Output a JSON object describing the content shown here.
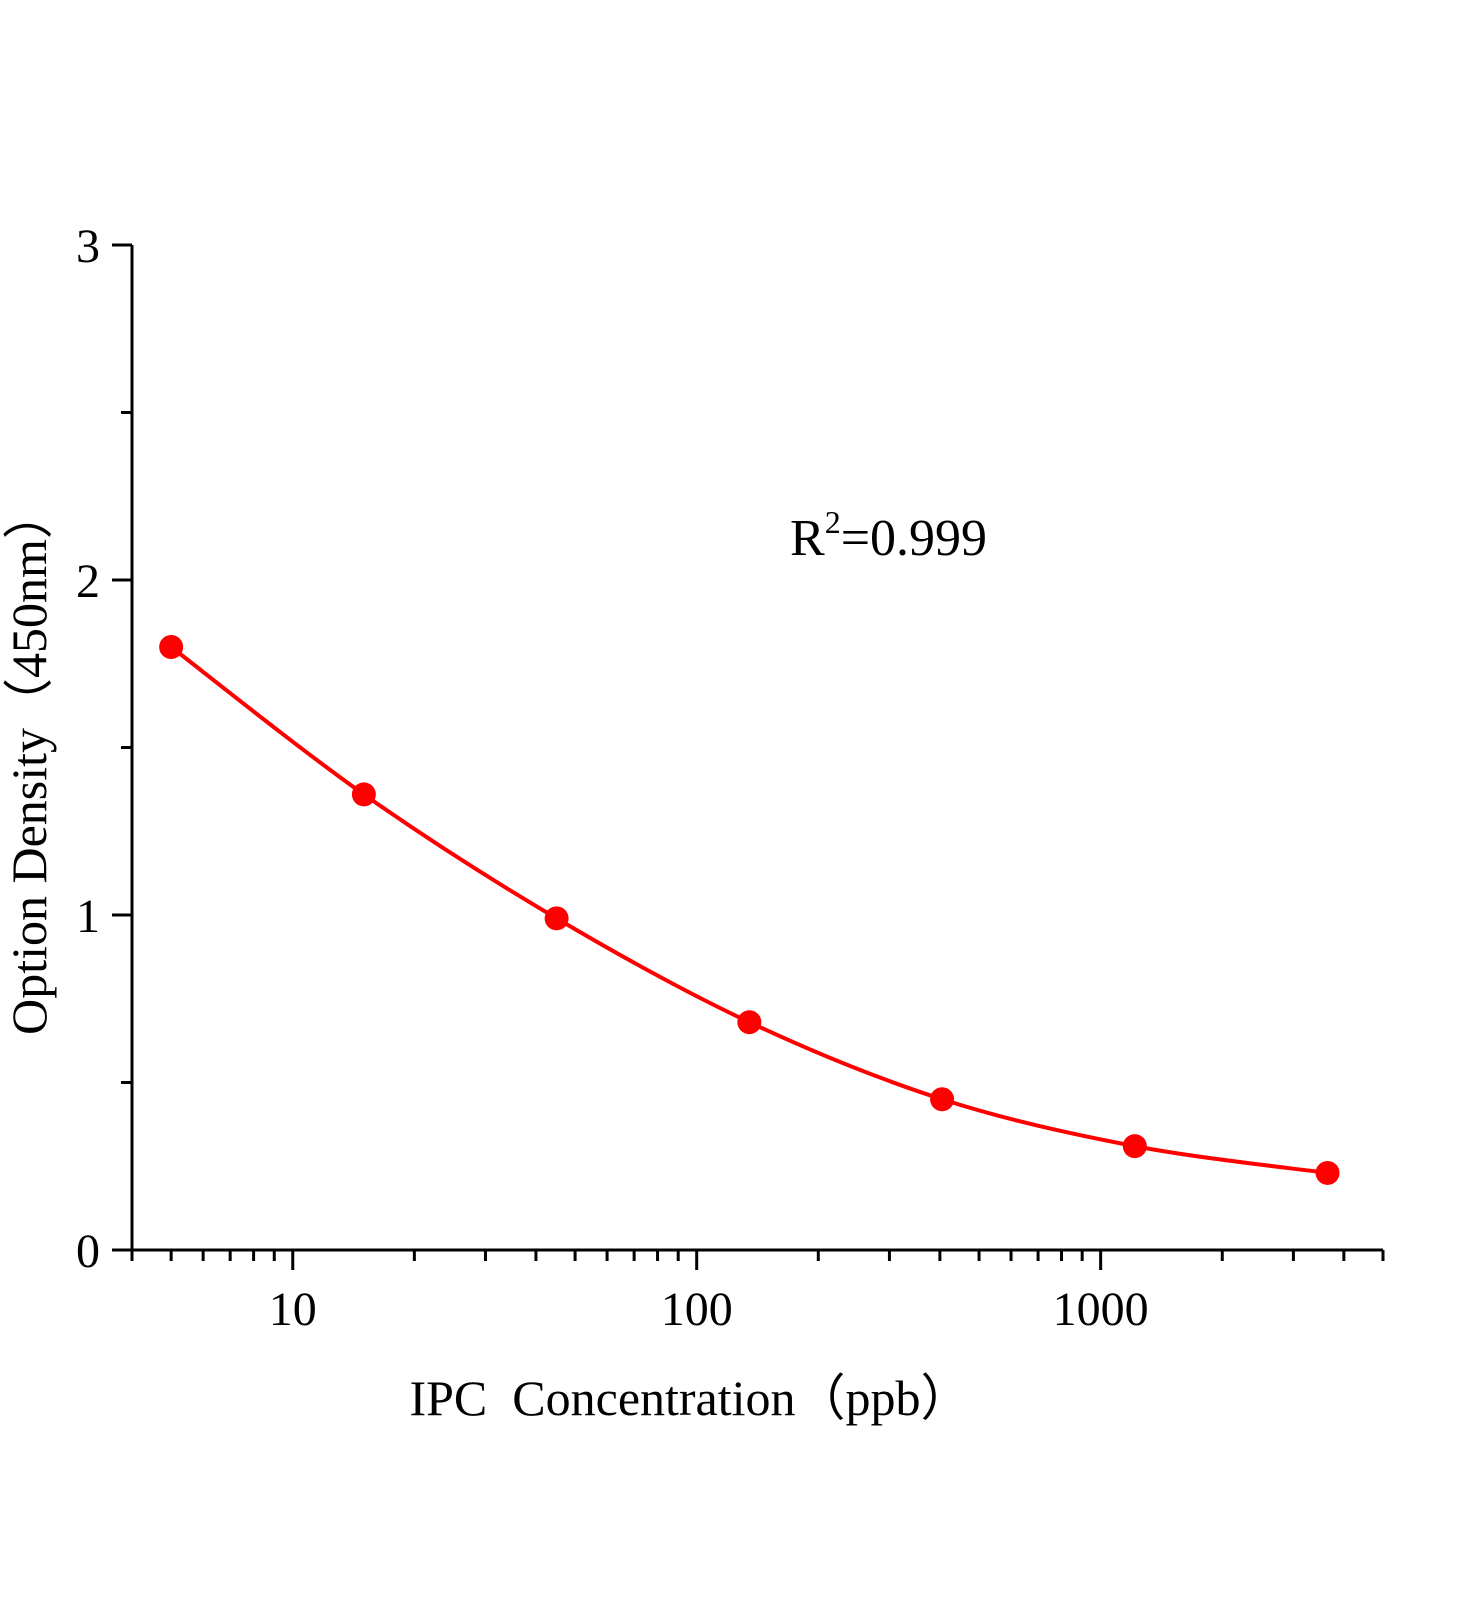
{
  "chart_data": {
    "type": "scatter",
    "title": "",
    "xlabel": "IPC  Concentration（ppb）",
    "ylabel": "Option Density（450nm）",
    "xscale": "log",
    "xlim": [
      4,
      5000
    ],
    "ylim": [
      0,
      3
    ],
    "x_ticks": [
      10,
      100,
      1000
    ],
    "x_tick_labels": [
      "10",
      "100",
      "1000"
    ],
    "y_ticks": [
      0,
      1,
      2,
      3
    ],
    "y_tick_labels": [
      "0",
      "1",
      "2",
      "3"
    ],
    "grid": false,
    "legend": "none",
    "series": [
      {
        "x": [
          5,
          15,
          45,
          135,
          405,
          1215,
          3645
        ],
        "y": [
          1.8,
          1.36,
          0.99,
          0.68,
          0.45,
          0.31,
          0.23
        ],
        "color": "#ff0000",
        "marker": "circle",
        "fit_line": true
      }
    ],
    "annotation": {
      "base": "R",
      "sup": "2",
      "rest": "=0.999"
    }
  }
}
